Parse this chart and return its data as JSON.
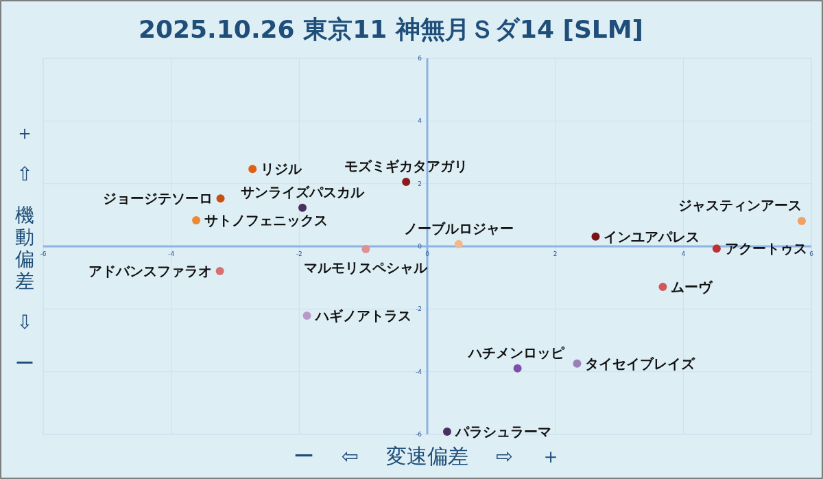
{
  "chart_data": {
    "type": "scatter",
    "title": "2025.10.26 東京11 神無月Ｓダ14  [SLM]",
    "xlabel": "ー ⇦ 変速偏差 ⇨ ＋",
    "ylabel": "＋ ⇧ 機動偏差 ⇩ ー",
    "xlim": [
      -6,
      6
    ],
    "ylim": [
      -6,
      6
    ],
    "xticks": [
      -6,
      -4,
      -2,
      0,
      2,
      4,
      6
    ],
    "yticks": [
      -6,
      -4,
      -2,
      0,
      2,
      4,
      6
    ],
    "grid": true,
    "marker": "circle",
    "legend": false,
    "series": [
      {
        "name": "リジル",
        "color": "#e06010",
        "x": [
          -2.73
        ],
        "values": [
          2.47
        ]
      },
      {
        "name": "ジョージテソーロ",
        "color": "#c85010",
        "x": [
          -3.23
        ],
        "values": [
          1.53
        ]
      },
      {
        "name": "サトノフェニックス",
        "color": "#f08830",
        "x": [
          -3.61
        ],
        "values": [
          0.83
        ]
      },
      {
        "name": "モズミギカタアガリ",
        "color": "#8b1c1c",
        "x": [
          -0.33
        ],
        "values": [
          2.06
        ]
      },
      {
        "name": "サンライズパスカル",
        "color": "#4a3060",
        "x": [
          -1.95
        ],
        "values": [
          1.23
        ]
      },
      {
        "name": "マルモリスペシャル",
        "color": "#e09090",
        "x": [
          -0.96
        ],
        "values": [
          -0.09
        ]
      },
      {
        "name": "アドバンスファラオ",
        "color": "#d87070",
        "x": [
          -3.24
        ],
        "values": [
          -0.79
        ]
      },
      {
        "name": "ハギノアトラス",
        "color": "#b89ac8",
        "x": [
          -1.88
        ],
        "values": [
          -2.21
        ]
      },
      {
        "name": "ノーブルロジャー",
        "color": "#f4b888",
        "x": [
          0.49
        ],
        "values": [
          0.07
        ]
      },
      {
        "name": "インユアパレス",
        "color": "#7a1414",
        "x": [
          2.63
        ],
        "values": [
          0.31
        ]
      },
      {
        "name": "ジャスティンアース",
        "color": "#f0a060",
        "x": [
          5.85
        ],
        "values": [
          0.81
        ]
      },
      {
        "name": "アクートゥス",
        "color": "#c03030",
        "x": [
          4.52
        ],
        "values": [
          -0.07
        ]
      },
      {
        "name": "ムーヴ",
        "color": "#d05858",
        "x": [
          3.68
        ],
        "values": [
          -1.29
        ]
      },
      {
        "name": "タイセイブレイズ",
        "color": "#9a80b8",
        "x": [
          2.34
        ],
        "values": [
          -3.74
        ]
      },
      {
        "name": "ハチメンロッピ",
        "color": "#7a50a8",
        "x": [
          1.41
        ],
        "values": [
          -3.89
        ]
      },
      {
        "name": "パラシュラーマ",
        "color": "#4a3060",
        "x": [
          0.31
        ],
        "values": [
          -5.91
        ]
      }
    ]
  }
}
